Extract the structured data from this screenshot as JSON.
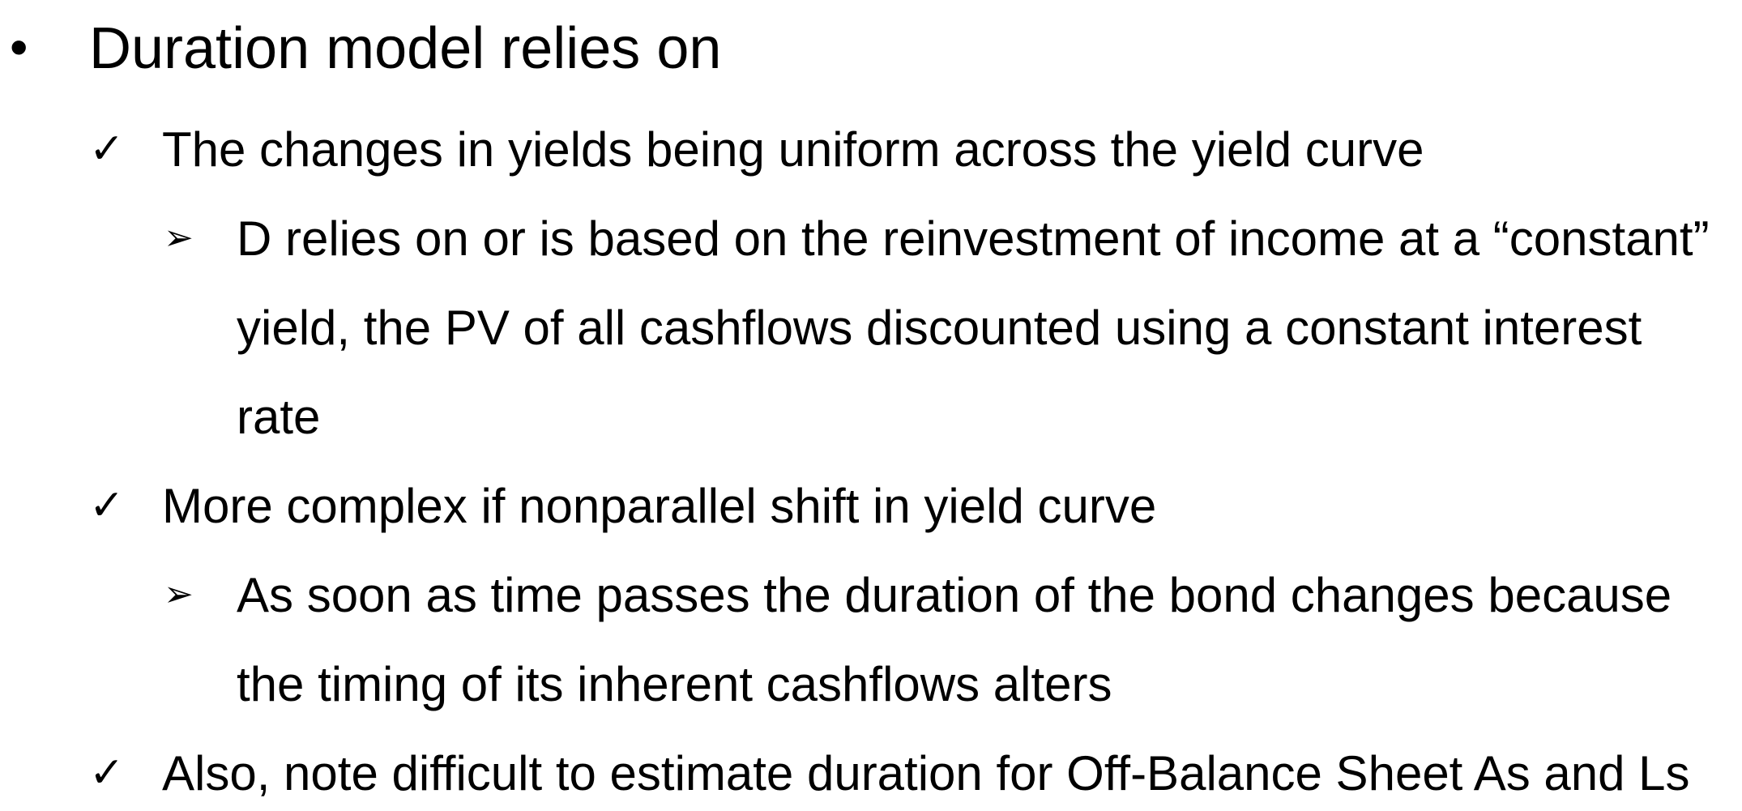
{
  "slide": {
    "bullet": {
      "marker": "•",
      "text": "Duration model relies on"
    },
    "items": [
      {
        "marker": "✓",
        "text": "The changes in yields being uniform across the yield curve",
        "sub": {
          "marker": "➢",
          "lines": [
            "D relies on or is based on the reinvestment of income at a “constant”",
            "yield, the PV of all cashflows discounted using a constant interest",
            "rate"
          ]
        }
      },
      {
        "marker": "✓",
        "text": "More complex if nonparallel shift in yield curve",
        "sub": {
          "marker": "➢",
          "lines": [
            "As soon as time passes the duration of the bond changes because",
            "the timing of its inherent cashflows alters"
          ]
        }
      },
      {
        "marker": "✓",
        "text": "Also, note difficult to estimate duration for Off-Balance Sheet As and Ls"
      }
    ]
  }
}
